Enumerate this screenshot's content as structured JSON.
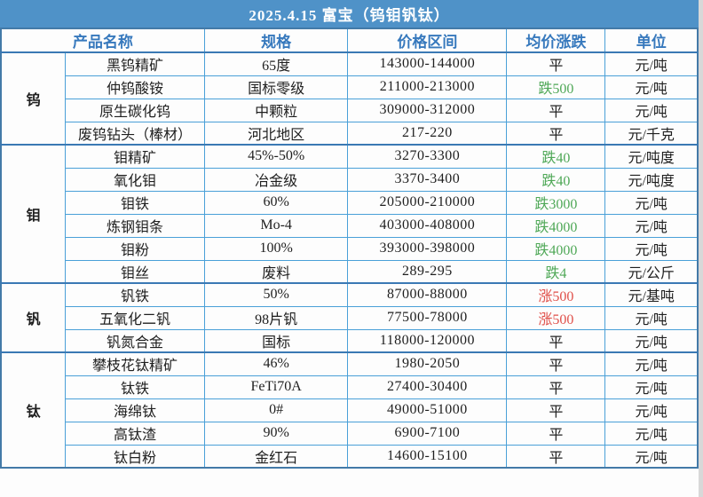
{
  "title": "2025.4.15 富宝（钨钼钒钛）",
  "colors": {
    "title_bg": "#4f92c8",
    "header_text": "#3779bd",
    "border": "#4aa0d8",
    "frame": "#437aa8",
    "section_border": "#3a79b4",
    "down": "#4fa857",
    "up": "#e0504a",
    "page_bg": "#d8d8d8"
  },
  "change_keywords": {
    "down": "跌",
    "up": "涨",
    "flat": "平"
  },
  "chart_data": {
    "type": "table",
    "title": "2025.4.15 富宝（钨钼钒钛）",
    "columns": [
      "产品名称",
      "规格",
      "价格区间",
      "均价涨跌",
      "单位"
    ],
    "sections": [
      {
        "category": "钨",
        "rows": [
          [
            "黑钨精矿",
            "65度",
            "143000-144000",
            "平",
            "元/吨"
          ],
          [
            "仲钨酸铵",
            "国标零级",
            "211000-213000",
            "跌500",
            "元/吨"
          ],
          [
            "原生碳化钨",
            "中颗粒",
            "309000-312000",
            "平",
            "元/吨"
          ],
          [
            "废钨钻头（棒材）",
            "河北地区",
            "217-220",
            "平",
            "元/千克"
          ]
        ]
      },
      {
        "category": "钼",
        "rows": [
          [
            "钼精矿",
            "45%-50%",
            "3270-3300",
            "跌40",
            "元/吨度"
          ],
          [
            "氧化钼",
            "冶金级",
            "3370-3400",
            "跌40",
            "元/吨度"
          ],
          [
            "钼铁",
            "60%",
            "205000-210000",
            "跌3000",
            "元/吨"
          ],
          [
            "炼钢钼条",
            "Mo-4",
            "403000-408000",
            "跌4000",
            "元/吨"
          ],
          [
            "钼粉",
            "100%",
            "393000-398000",
            "跌4000",
            "元/吨"
          ],
          [
            "钼丝",
            "废料",
            "289-295",
            "跌4",
            "元/公斤"
          ]
        ]
      },
      {
        "category": "钒",
        "rows": [
          [
            "钒铁",
            "50%",
            "87000-88000",
            "涨500",
            "元/基吨"
          ],
          [
            "五氧化二钒",
            "98片钒",
            "77500-78000",
            "涨500",
            "元/吨"
          ],
          [
            "钒氮合金",
            "国标",
            "118000-120000",
            "平",
            "元/吨"
          ]
        ]
      },
      {
        "category": "钛",
        "rows": [
          [
            "攀枝花钛精矿",
            "46%",
            "1980-2050",
            "平",
            "元/吨"
          ],
          [
            "钛铁",
            "FeTi70A",
            "27400-30400",
            "平",
            "元/吨"
          ],
          [
            "海绵钛",
            "0#",
            "49000-51000",
            "平",
            "元/吨"
          ],
          [
            "高钛渣",
            "90%",
            "6900-7100",
            "平",
            "元/吨"
          ],
          [
            "钛白粉",
            "金红石",
            "14600-15100",
            "平",
            "元/吨"
          ]
        ]
      }
    ]
  }
}
